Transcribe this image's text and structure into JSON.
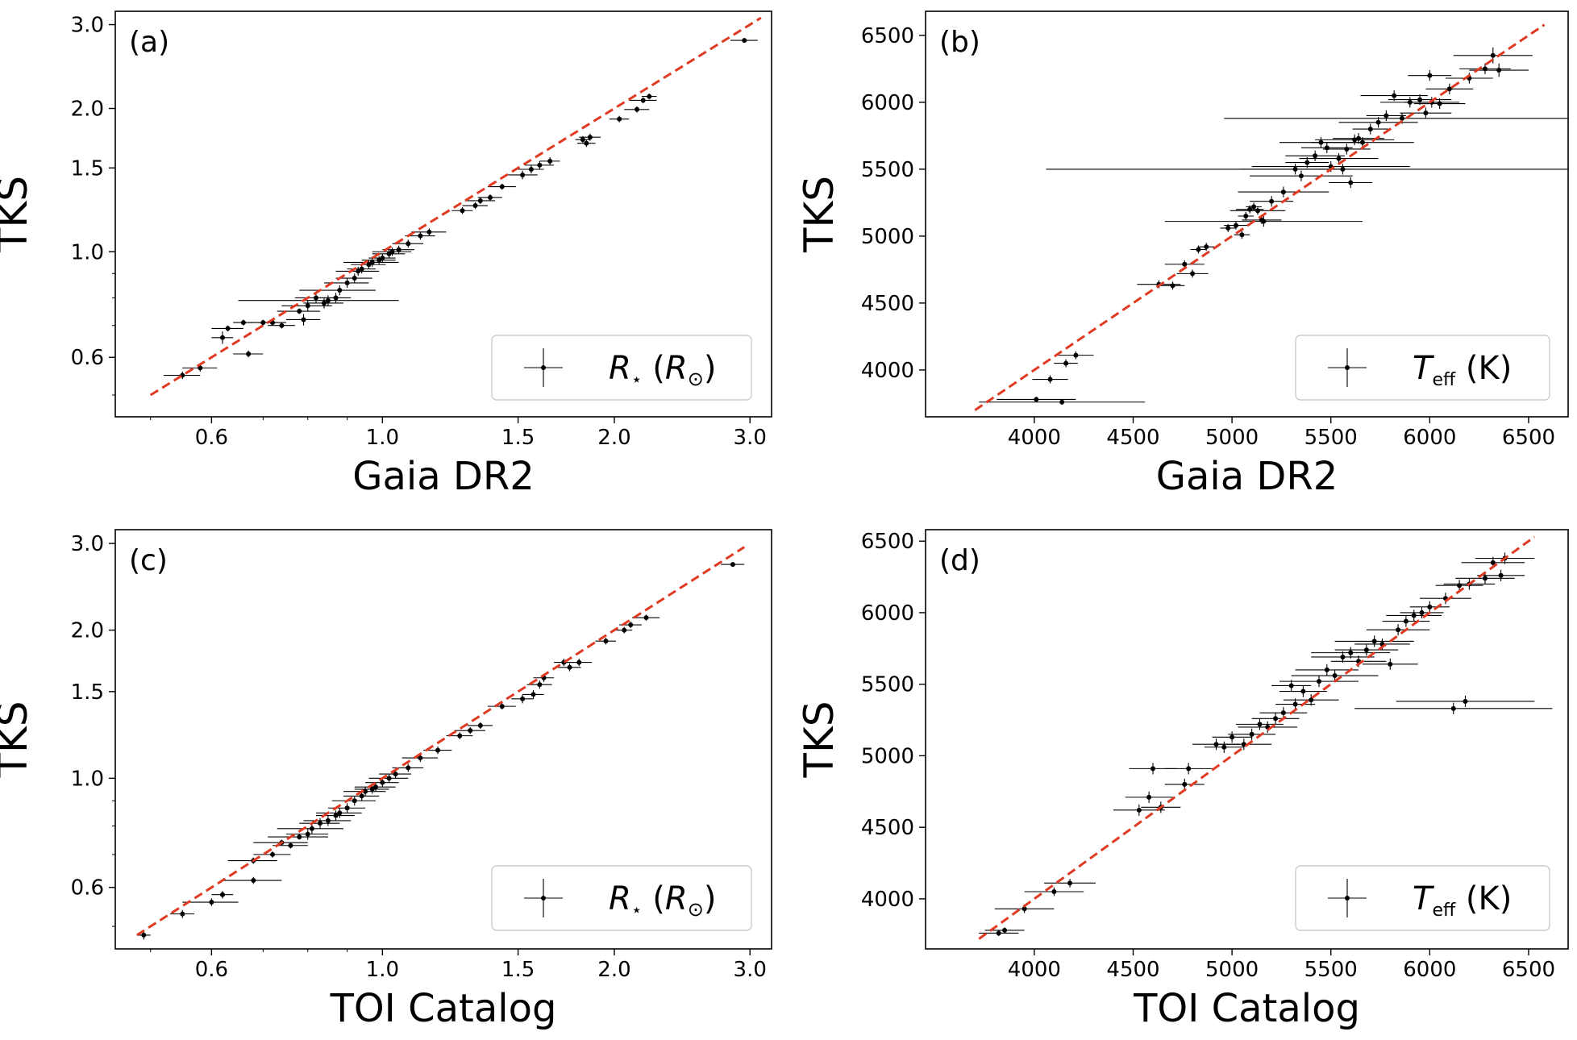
{
  "chart_data": [
    {
      "panel": "(a)",
      "type": "scatter",
      "xlabel": "Gaia DR2",
      "ylabel": "TKS",
      "xscale": "log",
      "yscale": "log",
      "xlim": [
        0.45,
        3.2
      ],
      "ylim": [
        0.45,
        3.2
      ],
      "xticks": [
        "0.6",
        "1.0",
        "1.5",
        "2.0",
        "3.0"
      ],
      "yticks": [
        "0.6",
        "1.0",
        "1.5",
        "2.0",
        "3.0"
      ],
      "legend": {
        "label_main": "R",
        "label_sub": "⋆",
        "label_unit": "(R",
        "label_unit_sub": "⊙",
        "label_close": ")",
        "loc": "lower right"
      },
      "one_to_one": [
        0.5,
        3.1
      ],
      "points": [
        [
          0.55,
          0.55,
          0.03,
          0.01
        ],
        [
          0.58,
          0.57,
          0.03,
          0.01
        ],
        [
          0.62,
          0.66,
          0.02,
          0.02
        ],
        [
          0.63,
          0.69,
          0.03,
          0.01
        ],
        [
          0.66,
          0.71,
          0.02,
          0.01
        ],
        [
          0.67,
          0.61,
          0.03,
          0.01
        ],
        [
          0.7,
          0.71,
          0.03,
          0.01
        ],
        [
          0.72,
          0.71,
          0.03,
          0.01
        ],
        [
          0.74,
          0.7,
          0.03,
          0.01
        ],
        [
          0.78,
          0.75,
          0.05,
          0.01
        ],
        [
          0.79,
          0.72,
          0.04,
          0.02
        ],
        [
          0.8,
          0.77,
          0.06,
          0.02
        ],
        [
          0.82,
          0.8,
          0.05,
          0.02
        ],
        [
          0.84,
          0.78,
          0.05,
          0.02
        ],
        [
          0.85,
          0.79,
          0.2,
          0.02
        ],
        [
          0.87,
          0.8,
          0.04,
          0.02
        ],
        [
          0.88,
          0.83,
          0.1,
          0.02
        ],
        [
          0.9,
          0.86,
          0.06,
          0.02
        ],
        [
          0.92,
          0.88,
          0.05,
          0.02
        ],
        [
          0.93,
          0.91,
          0.06,
          0.02
        ],
        [
          0.94,
          0.92,
          0.04,
          0.02
        ],
        [
          0.96,
          0.94,
          0.05,
          0.02
        ],
        [
          0.97,
          0.95,
          0.08,
          0.02
        ],
        [
          0.99,
          0.96,
          0.05,
          0.02
        ],
        [
          1.0,
          0.97,
          0.04,
          0.02
        ],
        [
          1.02,
          0.99,
          0.05,
          0.02
        ],
        [
          1.03,
          1.0,
          0.06,
          0.02
        ],
        [
          1.05,
          1.01,
          0.05,
          0.02
        ],
        [
          1.08,
          1.04,
          0.05,
          0.02
        ],
        [
          1.12,
          1.08,
          0.05,
          0.02
        ],
        [
          1.15,
          1.1,
          0.06,
          0.02
        ],
        [
          1.27,
          1.22,
          0.04,
          0.02
        ],
        [
          1.32,
          1.25,
          0.05,
          0.02
        ],
        [
          1.34,
          1.28,
          0.06,
          0.02
        ],
        [
          1.38,
          1.3,
          0.05,
          0.02
        ],
        [
          1.43,
          1.37,
          0.06,
          0.02
        ],
        [
          1.52,
          1.45,
          0.07,
          0.03
        ],
        [
          1.56,
          1.49,
          0.06,
          0.03
        ],
        [
          1.6,
          1.52,
          0.07,
          0.03
        ],
        [
          1.65,
          1.55,
          0.05,
          0.03
        ],
        [
          1.82,
          1.72,
          0.04,
          0.03
        ],
        [
          1.84,
          1.69,
          0.05,
          0.03
        ],
        [
          1.86,
          1.74,
          0.06,
          0.03
        ],
        [
          2.03,
          1.9,
          0.06,
          0.03
        ],
        [
          2.14,
          1.99,
          0.08,
          0.03
        ],
        [
          2.18,
          2.08,
          0.09,
          0.03
        ],
        [
          2.22,
          2.12,
          0.05,
          0.03
        ],
        [
          2.95,
          2.78,
          0.12,
          0.03
        ]
      ]
    },
    {
      "panel": "(b)",
      "type": "scatter",
      "xlabel": "Gaia DR2",
      "ylabel": "TKS",
      "xlim": [
        3450,
        6700
      ],
      "ylim": [
        3650,
        6680
      ],
      "xticks": [
        "4000",
        "4500",
        "5000",
        "5500",
        "6000",
        "6500"
      ],
      "yticks": [
        "4000",
        "4500",
        "5000",
        "5500",
        "6000",
        "6500"
      ],
      "legend": {
        "label_main": "T",
        "label_sub": "eff",
        "label_unit": "(K)",
        "label_unit_sub": "",
        "label_close": "",
        "loc": "lower right"
      },
      "one_to_one": [
        3700,
        6580
      ],
      "points": [
        [
          4010,
          3780,
          200,
          20
        ],
        [
          4140,
          3760,
          420,
          20
        ],
        [
          4080,
          3930,
          90,
          30
        ],
        [
          4160,
          4050,
          60,
          30
        ],
        [
          4210,
          4110,
          90,
          30
        ],
        [
          4630,
          4640,
          110,
          30
        ],
        [
          4700,
          4630,
          60,
          30
        ],
        [
          4760,
          4790,
          100,
          30
        ],
        [
          4800,
          4720,
          80,
          30
        ],
        [
          4830,
          4900,
          40,
          30
        ],
        [
          4870,
          4920,
          40,
          30
        ],
        [
          4980,
          5060,
          40,
          30
        ],
        [
          5020,
          5080,
          60,
          30
        ],
        [
          5050,
          5010,
          40,
          30
        ],
        [
          5070,
          5150,
          40,
          30
        ],
        [
          5090,
          5200,
          70,
          30
        ],
        [
          5110,
          5220,
          40,
          30
        ],
        [
          5130,
          5190,
          140,
          30
        ],
        [
          5150,
          5120,
          100,
          30
        ],
        [
          5160,
          5110,
          500,
          40
        ],
        [
          5200,
          5260,
          110,
          40
        ],
        [
          5260,
          5330,
          230,
          40
        ],
        [
          5320,
          5500,
          280,
          40
        ],
        [
          5350,
          5450,
          260,
          40
        ],
        [
          5380,
          5550,
          110,
          40
        ],
        [
          5420,
          5600,
          150,
          40
        ],
        [
          5450,
          5700,
          210,
          40
        ],
        [
          5480,
          5660,
          130,
          40
        ],
        [
          5500,
          5520,
          400,
          40
        ],
        [
          5540,
          5580,
          200,
          40
        ],
        [
          5560,
          5500,
          1500,
          40
        ],
        [
          5580,
          5650,
          120,
          40
        ],
        [
          5600,
          5400,
          110,
          40
        ],
        [
          5620,
          5720,
          200,
          40
        ],
        [
          5640,
          5730,
          130,
          40
        ],
        [
          5660,
          5700,
          260,
          40
        ],
        [
          5700,
          5800,
          90,
          40
        ],
        [
          5740,
          5850,
          200,
          40
        ],
        [
          5780,
          5900,
          100,
          40
        ],
        [
          5820,
          6050,
          170,
          40
        ],
        [
          5860,
          5880,
          900,
          40
        ],
        [
          5900,
          6000,
          150,
          40
        ],
        [
          5950,
          6020,
          160,
          40
        ],
        [
          5980,
          5920,
          130,
          40
        ],
        [
          6000,
          6200,
          110,
          40
        ],
        [
          6010,
          6000,
          140,
          40
        ],
        [
          6050,
          5990,
          130,
          40
        ],
        [
          6100,
          6100,
          120,
          40
        ],
        [
          6200,
          6180,
          120,
          40
        ],
        [
          6280,
          6250,
          130,
          40
        ],
        [
          6320,
          6350,
          200,
          60
        ],
        [
          6350,
          6240,
          150,
          50
        ]
      ]
    },
    {
      "panel": "(c)",
      "type": "scatter",
      "xlabel": "TOI Catalog",
      "ylabel": "TKS",
      "xscale": "log",
      "yscale": "log",
      "xlim": [
        0.45,
        3.2
      ],
      "ylim": [
        0.45,
        3.2
      ],
      "xticks": [
        "0.6",
        "1.0",
        "1.5",
        "2.0",
        "3.0"
      ],
      "yticks": [
        "0.6",
        "1.0",
        "1.5",
        "2.0",
        "3.0"
      ],
      "legend": {
        "label_main": "R",
        "label_sub": "⋆",
        "label_unit": "(R",
        "label_unit_sub": "⊙",
        "label_close": ")",
        "loc": "lower right"
      },
      "one_to_one": [
        0.48,
        2.95
      ],
      "points": [
        [
          0.49,
          0.48,
          0.01,
          0.01
        ],
        [
          0.55,
          0.53,
          0.02,
          0.01
        ],
        [
          0.6,
          0.56,
          0.05,
          0.01
        ],
        [
          0.62,
          0.58,
          0.02,
          0.01
        ],
        [
          0.68,
          0.62,
          0.06,
          0.01
        ],
        [
          0.68,
          0.68,
          0.05,
          0.01
        ],
        [
          0.72,
          0.7,
          0.04,
          0.01
        ],
        [
          0.74,
          0.74,
          0.06,
          0.01
        ],
        [
          0.76,
          0.73,
          0.04,
          0.01
        ],
        [
          0.78,
          0.76,
          0.07,
          0.01
        ],
        [
          0.8,
          0.77,
          0.05,
          0.02
        ],
        [
          0.81,
          0.79,
          0.08,
          0.02
        ],
        [
          0.83,
          0.81,
          0.05,
          0.02
        ],
        [
          0.85,
          0.82,
          0.06,
          0.02
        ],
        [
          0.87,
          0.84,
          0.05,
          0.02
        ],
        [
          0.88,
          0.85,
          0.06,
          0.02
        ],
        [
          0.9,
          0.87,
          0.05,
          0.02
        ],
        [
          0.92,
          0.9,
          0.06,
          0.02
        ],
        [
          0.94,
          0.92,
          0.05,
          0.02
        ],
        [
          0.95,
          0.94,
          0.06,
          0.02
        ],
        [
          0.97,
          0.95,
          0.05,
          0.02
        ],
        [
          0.98,
          0.96,
          0.06,
          0.02
        ],
        [
          1.0,
          0.98,
          0.05,
          0.02
        ],
        [
          1.02,
          1.0,
          0.06,
          0.02
        ],
        [
          1.04,
          1.02,
          0.05,
          0.02
        ],
        [
          1.08,
          1.05,
          0.05,
          0.02
        ],
        [
          1.12,
          1.1,
          0.06,
          0.02
        ],
        [
          1.18,
          1.14,
          0.05,
          0.02
        ],
        [
          1.26,
          1.22,
          0.05,
          0.02
        ],
        [
          1.3,
          1.25,
          0.06,
          0.02
        ],
        [
          1.34,
          1.28,
          0.05,
          0.02
        ],
        [
          1.43,
          1.4,
          0.06,
          0.02
        ],
        [
          1.52,
          1.45,
          0.05,
          0.03
        ],
        [
          1.57,
          1.48,
          0.05,
          0.03
        ],
        [
          1.6,
          1.55,
          0.06,
          0.03
        ],
        [
          1.62,
          1.6,
          0.05,
          0.03
        ],
        [
          1.72,
          1.72,
          0.05,
          0.03
        ],
        [
          1.75,
          1.68,
          0.06,
          0.03
        ],
        [
          1.8,
          1.72,
          0.07,
          0.03
        ],
        [
          1.95,
          1.9,
          0.06,
          0.03
        ],
        [
          2.06,
          2.0,
          0.05,
          0.03
        ],
        [
          2.1,
          2.05,
          0.07,
          0.03
        ],
        [
          2.2,
          2.12,
          0.09,
          0.03
        ],
        [
          2.85,
          2.72,
          0.1,
          0.03
        ]
      ]
    },
    {
      "panel": "(d)",
      "type": "scatter",
      "xlabel": "TOI Catalog",
      "ylabel": "TKS",
      "xlim": [
        3450,
        6700
      ],
      "ylim": [
        3650,
        6580
      ],
      "xticks": [
        "4000",
        "4500",
        "5000",
        "5500",
        "6000",
        "6500"
      ],
      "yticks": [
        "4000",
        "4500",
        "5000",
        "5500",
        "6000",
        "6500"
      ],
      "legend": {
        "label_main": "T",
        "label_sub": "eff",
        "label_unit": "(K)",
        "label_unit_sub": "",
        "label_close": "",
        "loc": "lower right"
      },
      "one_to_one": [
        3720,
        6530
      ],
      "points": [
        [
          3820,
          3760,
          100,
          20
        ],
        [
          3850,
          3780,
          100,
          20
        ],
        [
          3950,
          3930,
          150,
          30
        ],
        [
          4100,
          4050,
          150,
          30
        ],
        [
          4180,
          4110,
          130,
          30
        ],
        [
          4530,
          4620,
          130,
          40
        ],
        [
          4580,
          4710,
          120,
          40
        ],
        [
          4600,
          4910,
          120,
          40
        ],
        [
          4640,
          4640,
          100,
          40
        ],
        [
          4760,
          4800,
          100,
          40
        ],
        [
          4780,
          4910,
          120,
          40
        ],
        [
          4920,
          5080,
          120,
          40
        ],
        [
          4960,
          5060,
          100,
          40
        ],
        [
          5000,
          5130,
          100,
          40
        ],
        [
          5060,
          5080,
          140,
          40
        ],
        [
          5100,
          5150,
          120,
          40
        ],
        [
          5140,
          5220,
          120,
          40
        ],
        [
          5180,
          5200,
          150,
          40
        ],
        [
          5220,
          5260,
          120,
          40
        ],
        [
          5260,
          5300,
          120,
          40
        ],
        [
          5300,
          5490,
          100,
          40
        ],
        [
          5320,
          5360,
          100,
          40
        ],
        [
          5360,
          5450,
          120,
          40
        ],
        [
          5400,
          5390,
          140,
          40
        ],
        [
          5440,
          5520,
          200,
          40
        ],
        [
          5480,
          5600,
          160,
          40
        ],
        [
          5520,
          5560,
          220,
          40
        ],
        [
          5560,
          5690,
          160,
          40
        ],
        [
          5600,
          5720,
          200,
          40
        ],
        [
          5640,
          5660,
          140,
          40
        ],
        [
          5680,
          5740,
          160,
          40
        ],
        [
          5720,
          5800,
          200,
          40
        ],
        [
          5760,
          5780,
          140,
          40
        ],
        [
          5800,
          5640,
          140,
          40
        ],
        [
          5840,
          5880,
          160,
          40
        ],
        [
          5880,
          5940,
          120,
          40
        ],
        [
          5920,
          5980,
          140,
          40
        ],
        [
          5960,
          6000,
          110,
          40
        ],
        [
          6000,
          6040,
          100,
          40
        ],
        [
          6080,
          6100,
          130,
          40
        ],
        [
          6120,
          5330,
          500,
          40
        ],
        [
          6180,
          5380,
          350,
          40
        ],
        [
          6150,
          6190,
          120,
          40
        ],
        [
          6200,
          6200,
          130,
          40
        ],
        [
          6280,
          6240,
          150,
          40
        ],
        [
          6320,
          6350,
          160,
          40
        ],
        [
          6360,
          6260,
          120,
          40
        ],
        [
          6380,
          6380,
          150,
          40
        ]
      ]
    }
  ]
}
